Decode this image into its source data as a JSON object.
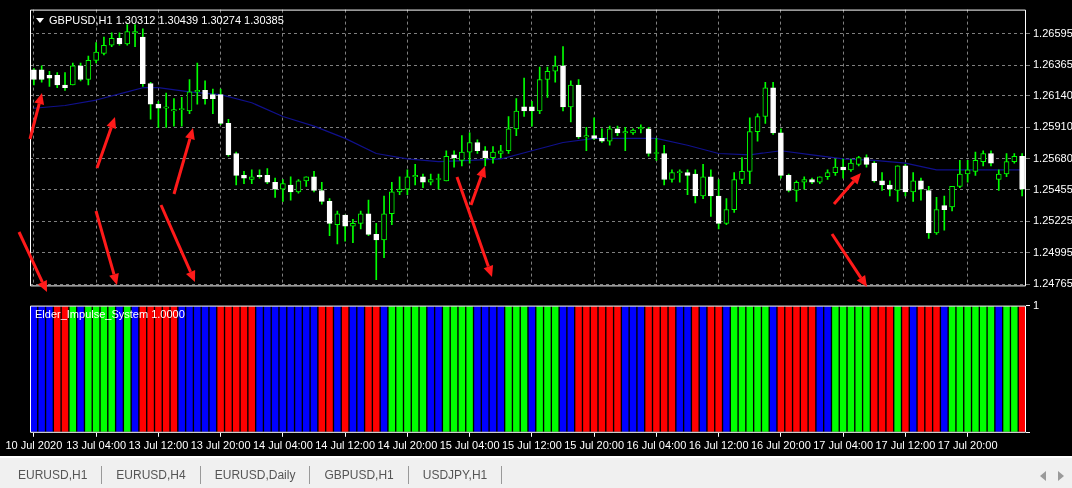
{
  "chart_data": [
    {
      "type": "candlestick",
      "title": "GBPUSD,H1  1.30312 1.30439 1.30274 1.30385",
      "color": "#00ff00",
      "colors": [
        "#ffffff",
        "#ffffff",
        "#ffffff",
        "#ffffff",
        "#ffffff",
        "#00ff00",
        "#ffffff",
        "#00ff00",
        "#00ff00",
        "#00ff00",
        "#00ff00",
        "#ffffff",
        "#00ff00",
        "#00ff00",
        "#ffffff",
        "#ffffff",
        "#ffffff",
        "#00ff00",
        "#00ff00",
        "#00ff00",
        "#00ff00",
        "#00ff00",
        "#ffffff",
        "#ffffff",
        "#ffffff",
        "#ffffff",
        "#ffffff",
        "#ffffff",
        "#00ff00",
        "#ffffff",
        "#ffffff",
        "#ffffff",
        "#00ff00",
        "#ffffff",
        "#00ff00",
        "#00ff00",
        "#ffffff",
        "#ffffff",
        "#ffffff",
        "#00ff00",
        "#ffffff",
        "#00ff00",
        "#00ff00",
        "#ffffff",
        "#ffffff",
        "#00ff00",
        "#00ff00",
        "#00ff00",
        "#00ff00",
        "#00ff00",
        "#ffffff",
        "#00ff00",
        "#00ff00",
        "#00ff00",
        "#ffffff",
        "#00ff00",
        "#00ff00",
        "#ffffff",
        "#ffffff",
        "#00ff00",
        "#00ff00",
        "#00ff00",
        "#00ff00",
        "#ffffff",
        "#ffffff",
        "#00ff00",
        "#00ff00",
        "#00ff00",
        "#ffffff",
        "#00ff00",
        "#ffffff",
        "#00ff00",
        "#ffffff",
        "#ffffff",
        "#00ff00",
        "#ffffff",
        "#00ff00",
        "#00ff00",
        "#00ff00",
        "#ffffff",
        "#00ff00",
        "#ffffff",
        "#00ff00",
        "#00ff00",
        "#ffffff",
        "#ffffff",
        "#00ff00",
        "#ffffff",
        "#ffffff",
        "#00ff00",
        "#00ff00",
        "#00ff00",
        "#00ff00",
        "#00ff00",
        "#00ff00",
        "#ffffff",
        "#ffffff",
        "#ffffff",
        "#00ff00",
        "#00ff00",
        "#ffffff",
        "#00ff00",
        "#00ff00",
        "#00ff00",
        "#ffffff",
        "#00ff00",
        "#00ff00",
        "#ffffff",
        "#ffffff",
        "#ffffff",
        "#ffffff",
        "#00ff00",
        "#ffffff",
        "#00ff00",
        "#ffffff",
        "#ffffff",
        "#00ff00",
        "#ffffff",
        "#00ff00",
        "#00ff00",
        "#00ff00",
        "#00ff00",
        "#00ff00",
        "#ffffff",
        "#00ff00",
        "#00ff00",
        "#00ff00",
        "#ffffff"
      ],
      "categories": [
        null,
        null,
        null,
        null,
        null,
        null,
        null,
        null,
        null,
        null,
        null,
        null,
        null,
        null,
        null,
        null,
        null,
        null,
        null,
        null,
        null,
        null,
        null,
        null,
        null,
        null,
        null,
        null,
        null,
        null,
        null,
        null,
        null,
        null,
        null,
        null,
        null,
        null,
        null,
        null,
        null,
        null,
        null,
        null,
        null,
        null,
        null,
        null,
        null,
        null,
        null,
        null,
        null,
        null,
        null,
        null,
        null,
        null,
        null,
        null,
        null,
        null,
        null,
        null,
        null,
        null,
        null,
        null,
        null,
        null,
        null,
        null,
        null,
        null,
        null,
        null,
        null,
        null,
        null,
        null,
        null,
        null,
        null,
        null,
        null,
        null,
        null,
        null,
        null,
        null,
        null,
        null,
        null,
        null,
        null,
        null,
        null,
        null,
        null,
        null,
        null,
        null,
        null,
        null,
        null,
        null,
        null,
        null,
        null,
        null,
        null,
        null,
        null,
        null,
        null,
        null,
        null,
        null,
        null,
        null,
        null,
        null,
        null,
        null,
        null,
        null,
        null,
        null
      ],
      "ohlc": [
        [
          1.2633,
          1.2634,
          1.2622,
          1.2626
        ],
        [
          1.2633,
          1.2636,
          1.2624,
          1.2626
        ],
        [
          1.2629,
          1.2632,
          1.2621,
          1.2627
        ],
        [
          1.2629,
          1.2631,
          1.262,
          1.2622
        ],
        [
          1.2622,
          1.2631,
          1.2618,
          1.262
        ],
        [
          1.2622,
          1.2638,
          1.2622,
          1.2636
        ],
        [
          1.2636,
          1.2638,
          1.2625,
          1.2626
        ],
        [
          1.2626,
          1.2643,
          1.2622,
          1.264
        ],
        [
          1.264,
          1.2653,
          1.2638,
          1.2646
        ],
        [
          1.2645,
          1.2657,
          1.2644,
          1.2651
        ],
        [
          1.2651,
          1.266,
          1.265,
          1.2656
        ],
        [
          1.2656,
          1.266,
          1.2651,
          1.2652
        ],
        [
          1.2652,
          1.2666,
          1.2651,
          1.2661
        ],
        [
          1.266,
          1.2666,
          1.265,
          1.2661
        ],
        [
          1.2657,
          1.2663,
          1.2621,
          1.2623
        ],
        [
          1.2623,
          1.2624,
          1.2597,
          1.2608
        ],
        [
          1.2608,
          1.261,
          1.2591,
          1.2605
        ],
        [
          1.2605,
          1.2616,
          1.2591,
          1.2606
        ],
        [
          1.2603,
          1.2612,
          1.2592,
          1.2604
        ],
        [
          1.2604,
          1.2613,
          1.2592,
          1.2604
        ],
        [
          1.2603,
          1.2626,
          1.2601,
          1.2617
        ],
        [
          1.2617,
          1.2638,
          1.2608,
          1.2618
        ],
        [
          1.2618,
          1.2625,
          1.2608,
          1.2612
        ],
        [
          1.2615,
          1.2619,
          1.2601,
          1.2612
        ],
        [
          1.2615,
          1.2619,
          1.2593,
          1.2594
        ],
        [
          1.2594,
          1.2597,
          1.257,
          1.2571
        ],
        [
          1.2572,
          1.2573,
          1.2549,
          1.2556
        ],
        [
          1.2556,
          1.2559,
          1.255,
          1.2554
        ],
        [
          1.2553,
          1.256,
          1.255,
          1.2555
        ],
        [
          1.2556,
          1.256,
          1.2554,
          1.2555
        ],
        [
          1.2556,
          1.2561,
          1.255,
          1.2551
        ],
        [
          1.2551,
          1.2554,
          1.254,
          1.2546
        ],
        [
          1.2546,
          1.2553,
          1.2537,
          1.255
        ],
        [
          1.2549,
          1.2555,
          1.2538,
          1.2544
        ],
        [
          1.2544,
          1.2553,
          1.2543,
          1.2552
        ],
        [
          1.2552,
          1.2555,
          1.2548,
          1.2555
        ],
        [
          1.2555,
          1.2559,
          1.2544,
          1.2545
        ],
        [
          1.2545,
          1.2551,
          1.2535,
          1.2537
        ],
        [
          1.2537,
          1.2539,
          1.2512,
          1.2521
        ],
        [
          1.252,
          1.253,
          1.2506,
          1.2528
        ],
        [
          1.2527,
          1.2527,
          1.2508,
          1.2519
        ],
        [
          1.2519,
          1.2524,
          1.2507,
          1.2521
        ],
        [
          1.2521,
          1.253,
          1.2517,
          1.2528
        ],
        [
          1.2528,
          1.2538,
          1.2512,
          1.2513
        ],
        [
          1.2513,
          1.2521,
          1.248,
          1.2509
        ],
        [
          1.2509,
          1.2541,
          1.2496,
          1.2528
        ],
        [
          1.2528,
          1.2551,
          1.252,
          1.2544
        ],
        [
          1.2544,
          1.2555,
          1.2542,
          1.2546
        ],
        [
          1.2546,
          1.256,
          1.2542,
          1.2555
        ],
        [
          1.2555,
          1.2564,
          1.2549,
          1.2556
        ],
        [
          1.2555,
          1.2557,
          1.2547,
          1.2551
        ],
        [
          1.2551,
          1.2557,
          1.2549,
          1.2553
        ],
        [
          1.2553,
          1.2557,
          1.2546,
          1.2553
        ],
        [
          1.2552,
          1.2574,
          1.2552,
          1.257
        ],
        [
          1.2571,
          1.2574,
          1.2562,
          1.2569
        ],
        [
          1.2567,
          1.2585,
          1.2563,
          1.2573
        ],
        [
          1.2573,
          1.2587,
          1.2565,
          1.258
        ],
        [
          1.258,
          1.2582,
          1.2572,
          1.2574
        ],
        [
          1.2574,
          1.2577,
          1.2563,
          1.2569
        ],
        [
          1.2569,
          1.2577,
          1.2565,
          1.2573
        ],
        [
          1.2572,
          1.2578,
          1.2569,
          1.2574
        ],
        [
          1.2574,
          1.2599,
          1.2572,
          1.259
        ],
        [
          1.259,
          1.2612,
          1.2585,
          1.2603
        ],
        [
          1.2606,
          1.2627,
          1.2599,
          1.2603
        ],
        [
          1.2606,
          1.261,
          1.2592,
          1.2603
        ],
        [
          1.2603,
          1.2635,
          1.2601,
          1.2626
        ],
        [
          1.2626,
          1.2635,
          1.2613,
          1.2632
        ],
        [
          1.2632,
          1.2643,
          1.2624,
          1.2636
        ],
        [
          1.2636,
          1.265,
          1.2603,
          1.2606
        ],
        [
          1.2606,
          1.2625,
          1.2595,
          1.2622
        ],
        [
          1.2622,
          1.2626,
          1.2583,
          1.2584
        ],
        [
          1.2584,
          1.2591,
          1.2574,
          1.2585
        ],
        [
          1.2585,
          1.2598,
          1.2582,
          1.2583
        ],
        [
          1.2583,
          1.259,
          1.258,
          1.2581
        ],
        [
          1.2581,
          1.2592,
          1.2578,
          1.259
        ],
        [
          1.259,
          1.2592,
          1.2585,
          1.2587
        ],
        [
          1.2587,
          1.2591,
          1.2574,
          1.2588
        ],
        [
          1.2587,
          1.259,
          1.2586,
          1.2589
        ],
        [
          1.259,
          1.2593,
          1.2587,
          1.2591
        ],
        [
          1.259,
          1.2591,
          1.257,
          1.2572
        ],
        [
          1.2572,
          1.2583,
          1.2567,
          1.2572
        ],
        [
          1.2572,
          1.2578,
          1.2549,
          1.2553
        ],
        [
          1.2553,
          1.256,
          1.2551,
          1.2558
        ],
        [
          1.2558,
          1.256,
          1.2551,
          1.2558
        ],
        [
          1.2558,
          1.256,
          1.2542,
          1.2556
        ],
        [
          1.2557,
          1.256,
          1.2536,
          1.2541
        ],
        [
          1.2541,
          1.2564,
          1.2539,
          1.2555
        ],
        [
          1.2555,
          1.256,
          1.2526,
          1.2541
        ],
        [
          1.2541,
          1.2553,
          1.2517,
          1.2521
        ],
        [
          1.2521,
          1.2539,
          1.252,
          1.2531
        ],
        [
          1.2531,
          1.2558,
          1.2529,
          1.2553
        ],
        [
          1.2553,
          1.2569,
          1.255,
          1.2559
        ],
        [
          1.2559,
          1.2598,
          1.255,
          1.2588
        ],
        [
          1.2588,
          1.2601,
          1.2581,
          1.2599
        ],
        [
          1.2599,
          1.2624,
          1.2594,
          1.262
        ],
        [
          1.262,
          1.2624,
          1.2586,
          1.2587
        ],
        [
          1.2587,
          1.259,
          1.2554,
          1.2556
        ],
        [
          1.2556,
          1.2557,
          1.2544,
          1.2545
        ],
        [
          1.2545,
          1.2552,
          1.2537,
          1.2551
        ],
        [
          1.2551,
          1.2555,
          1.2546,
          1.2553
        ],
        [
          1.2553,
          1.2554,
          1.255,
          1.2551
        ],
        [
          1.2551,
          1.2555,
          1.255,
          1.2555
        ],
        [
          1.2555,
          1.256,
          1.2553,
          1.2558
        ],
        [
          1.2558,
          1.2568,
          1.2556,
          1.2562
        ],
        [
          1.2562,
          1.2568,
          1.2554,
          1.256
        ],
        [
          1.256,
          1.2568,
          1.2559,
          1.2565
        ],
        [
          1.2564,
          1.257,
          1.2563,
          1.2569
        ],
        [
          1.2569,
          1.2571,
          1.2562,
          1.2564
        ],
        [
          1.2565,
          1.2566,
          1.2551,
          1.2552
        ],
        [
          1.2552,
          1.2558,
          1.2545,
          1.2549
        ],
        [
          1.2549,
          1.2552,
          1.2541,
          1.2546
        ],
        [
          1.2545,
          1.2563,
          1.2537,
          1.2563
        ],
        [
          1.2563,
          1.2564,
          1.2541,
          1.2544
        ],
        [
          1.2544,
          1.2558,
          1.2537,
          1.2552
        ],
        [
          1.2552,
          1.2554,
          1.2538,
          1.2546
        ],
        [
          1.2545,
          1.2548,
          1.251,
          1.2514
        ],
        [
          1.2514,
          1.254,
          1.2513,
          1.2531
        ],
        [
          1.2534,
          1.2541,
          1.2516,
          1.2531
        ],
        [
          1.2533,
          1.2548,
          1.253,
          1.2548
        ],
        [
          1.2548,
          1.2567,
          1.2547,
          1.2557
        ],
        [
          1.2557,
          1.2567,
          1.2551,
          1.256
        ],
        [
          1.2559,
          1.2573,
          1.2556,
          1.2567
        ],
        [
          1.2566,
          1.2574,
          1.2563,
          1.2572
        ],
        [
          1.2572,
          1.2574,
          1.2563,
          1.2565
        ],
        [
          1.2553,
          1.256,
          1.2545,
          1.2557
        ],
        [
          1.2557,
          1.2572,
          1.2555,
          1.2566
        ],
        [
          1.2566,
          1.2572,
          1.2565,
          1.257
        ],
        [
          1.257,
          1.2572,
          1.2541,
          1.2546
        ]
      ],
      "series": [
        {
          "type": "line",
          "color": "#10108c",
          "values": [
            1.2605,
            null,
            null,
            null,
            1.2607,
            null,
            null,
            null,
            1.2611,
            null,
            null,
            null,
            1.2617,
            null,
            1.262,
            null,
            1.262,
            null,
            null,
            null,
            1.2617,
            null,
            null,
            null,
            1.2615,
            null,
            null,
            null,
            1.2609,
            null,
            null,
            null,
            1.2599,
            null,
            null,
            null,
            1.2592,
            null,
            null,
            null,
            1.2583,
            null,
            null,
            null,
            1.2572,
            null,
            null,
            null,
            1.2568,
            null,
            null,
            null,
            1.2566,
            null,
            null,
            null,
            1.2567,
            null,
            null,
            null,
            1.2568,
            null,
            null,
            null,
            1.2574,
            null,
            null,
            null,
            1.258,
            null,
            null,
            null,
            1.2583,
            null,
            null,
            null,
            1.2583,
            null,
            null,
            null,
            1.2583,
            null,
            null,
            null,
            1.2578,
            null,
            null,
            null,
            1.2572,
            null,
            null,
            null,
            1.2571,
            null,
            null,
            null,
            1.2574,
            null,
            null,
            null,
            1.2571,
            null,
            null,
            null,
            1.2568,
            null,
            null,
            null,
            1.2567,
            null,
            null,
            null,
            1.2565,
            null,
            null,
            null,
            1.256,
            null,
            null,
            null,
            1.256,
            null,
            null,
            null,
            1.256,
            null,
            null,
            1.256
          ]
        }
      ],
      "ylim": [
        1.2475,
        1.2677
      ],
      "yticks": [
        1.26595,
        1.26365,
        {
          "value": 1.2614,
          "label": "1.26140"
        },
        {
          "value": 1.2591,
          "label": "1.25910"
        },
        {
          "value": 1.2568,
          "label": "1.25680"
        },
        1.25455,
        1.25225,
        1.24995,
        1.24765
      ],
      "grid": true,
      "tick_labels": "y",
      "legend": false
    },
    {
      "type": "bar",
      "title": "Elder_Impulse_System 1.0000",
      "categories": [
        "10 Jul 2020",
        null,
        null,
        null,
        null,
        null,
        null,
        null,
        "13 Jul 04:00",
        null,
        null,
        null,
        null,
        null,
        null,
        null,
        "13 Jul 12:00",
        null,
        null,
        null,
        null,
        null,
        null,
        null,
        "13 Jul 20:00",
        null,
        null,
        null,
        null,
        null,
        null,
        null,
        "14 Jul 04:00",
        null,
        null,
        null,
        null,
        null,
        null,
        null,
        "14 Jul 12:00",
        null,
        null,
        null,
        null,
        null,
        null,
        null,
        "14 Jul 20:00",
        null,
        null,
        null,
        null,
        null,
        null,
        null,
        "15 Jul 04:00",
        null,
        null,
        null,
        null,
        null,
        null,
        null,
        "15 Jul 12:00",
        null,
        null,
        null,
        null,
        null,
        null,
        null,
        "15 Jul 20:00",
        null,
        null,
        null,
        null,
        null,
        null,
        null,
        "16 Jul 04:00",
        null,
        null,
        null,
        null,
        null,
        null,
        null,
        "16 Jul 12:00",
        null,
        null,
        null,
        null,
        null,
        null,
        null,
        "16 Jul 20:00",
        null,
        null,
        null,
        null,
        null,
        null,
        null,
        "17 Jul 04:00",
        null,
        null,
        null,
        null,
        null,
        null,
        null,
        "17 Jul 12:00",
        null,
        null,
        null,
        null,
        null,
        null,
        null,
        "17 Jul 20:00",
        null,
        null,
        null,
        null,
        null,
        null,
        null
      ],
      "values": [
        1,
        1,
        1,
        1,
        1,
        1,
        1,
        1,
        1,
        1,
        1,
        1,
        1,
        1,
        1,
        1,
        1,
        1,
        1,
        1,
        1,
        1,
        1,
        1,
        1,
        1,
        1,
        1,
        1,
        1,
        1,
        1,
        1,
        1,
        1,
        1,
        1,
        1,
        1,
        1,
        1,
        1,
        1,
        1,
        1,
        1,
        1,
        1,
        1,
        1,
        1,
        1,
        1,
        1,
        1,
        1,
        1,
        1,
        1,
        1,
        1,
        1,
        1,
        1,
        1,
        1,
        1,
        1,
        1,
        1,
        1,
        1,
        1,
        1,
        1,
        1,
        1,
        1,
        1,
        1,
        1,
        1,
        1,
        1,
        1,
        1,
        1,
        1,
        1,
        1,
        1,
        1,
        1,
        1,
        1,
        1,
        1,
        1,
        1,
        1,
        1,
        1,
        1,
        1,
        1,
        1,
        1,
        1,
        1,
        1,
        1,
        1,
        1,
        1,
        1,
        1,
        1,
        1,
        1,
        1,
        1,
        1,
        1,
        1,
        1,
        1,
        1,
        1
      ],
      "colors": [
        "#0000ff",
        "#0000ff",
        "#0000ff",
        "#ff0000",
        "#ff0000",
        "#00ff00",
        "#0000ff",
        "#00ff00",
        "#00ff00",
        "#00ff00",
        "#00ff00",
        "#0000ff",
        "#00ff00",
        "#0000ff",
        "#ff0000",
        "#ff0000",
        "#ff0000",
        "#ff0000",
        "#ff0000",
        "#0000ff",
        "#0000ff",
        "#0000ff",
        "#0000ff",
        "#0000ff",
        "#ff0000",
        "#ff0000",
        "#ff0000",
        "#ff0000",
        "#ff0000",
        "#0000ff",
        "#0000ff",
        "#0000ff",
        "#0000ff",
        "#0000ff",
        "#0000ff",
        "#0000ff",
        "#0000ff",
        "#ff0000",
        "#ff0000",
        "#0000ff",
        "#ff0000",
        "#0000ff",
        "#0000ff",
        "#ff0000",
        "#ff0000",
        "#0000ff",
        "#00ff00",
        "#00ff00",
        "#00ff00",
        "#00ff00",
        "#00ff00",
        "#0000ff",
        "#0000ff",
        "#00ff00",
        "#00ff00",
        "#00ff00",
        "#00ff00",
        "#0000ff",
        "#0000ff",
        "#0000ff",
        "#0000ff",
        "#00ff00",
        "#00ff00",
        "#00ff00",
        "#0000ff",
        "#00ff00",
        "#00ff00",
        "#00ff00",
        "#0000ff",
        "#0000ff",
        "#ff0000",
        "#ff0000",
        "#ff0000",
        "#ff0000",
        "#ff0000",
        "#ff0000",
        "#0000ff",
        "#0000ff",
        "#0000ff",
        "#ff0000",
        "#ff0000",
        "#ff0000",
        "#ff0000",
        "#0000ff",
        "#0000ff",
        "#ff0000",
        "#0000ff",
        "#ff0000",
        "#ff0000",
        "#0000ff",
        "#00ff00",
        "#00ff00",
        "#00ff00",
        "#00ff00",
        "#00ff00",
        "#0000ff",
        "#ff0000",
        "#ff0000",
        "#ff0000",
        "#ff0000",
        "#ff0000",
        "#0000ff",
        "#0000ff",
        "#00ff00",
        "#00ff00",
        "#00ff00",
        "#00ff00",
        "#00ff00",
        "#ff0000",
        "#ff0000",
        "#ff0000",
        "#00ff00",
        "#ff0000",
        "#0000ff",
        "#ff0000",
        "#ff0000",
        "#ff0000",
        "#0000ff",
        "#00ff00",
        "#00ff00",
        "#00ff00",
        "#00ff00",
        "#00ff00",
        "#00ff00",
        "#0000ff",
        "#00ff00",
        "#00ff00",
        "#ff0000"
      ],
      "ylim": [
        0,
        1
      ],
      "yticks": [
        0,
        1
      ],
      "legend": false
    },
    {
      "type": "other",
      "annotations": [
        "EURUSD,H1",
        "EURUSD,H4",
        "EURUSD,Daily",
        "GBPUSD,H1",
        "USDJPY,H1"
      ]
    }
  ]
}
